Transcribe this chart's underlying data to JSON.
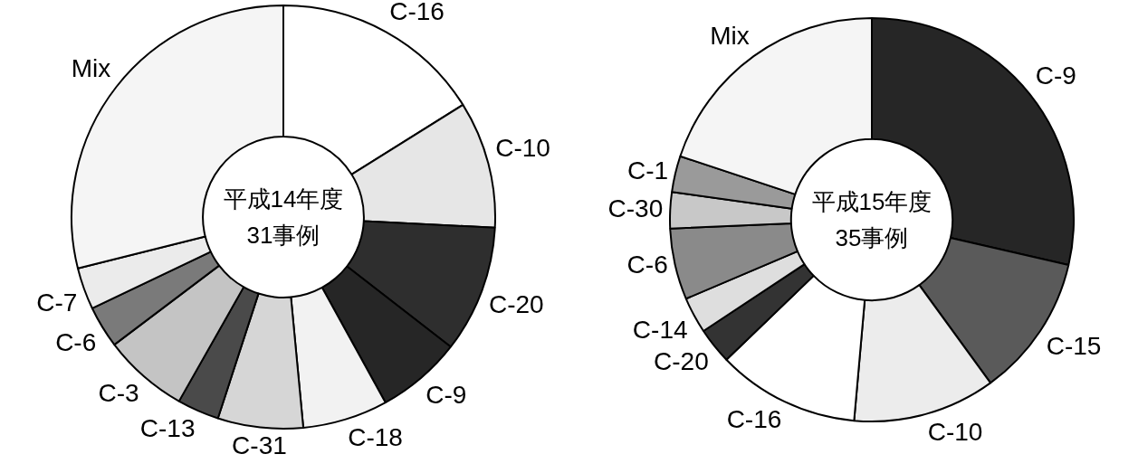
{
  "chart_data": [
    {
      "type": "donut",
      "title": "平成14年度",
      "subtitle": "31事例",
      "categories": [
        "C-16",
        "C-10",
        "C-20",
        "C-9",
        "C-18",
        "C-31",
        "C-13",
        "C-3",
        "C-6",
        "C-7",
        "Mix"
      ],
      "values": [
        16.1,
        9.7,
        9.7,
        6.5,
        6.5,
        6.5,
        3.2,
        6.5,
        3.2,
        3.2,
        28.9
      ],
      "colors": [
        "#ffffff",
        "#e6e6e6",
        "#2e2e2e",
        "#262626",
        "#f2f2f2",
        "#d6d6d6",
        "#4a4a4a",
        "#c4c4c4",
        "#7a7a7a",
        "#ebebeb",
        "#f5f5f5"
      ]
    },
    {
      "type": "donut",
      "title": "平成15年度",
      "subtitle": "35事例",
      "categories": [
        "C-9",
        "C-15",
        "C-10",
        "C-16",
        "C-20",
        "C-14",
        "C-6",
        "C-30",
        "C-1",
        "Mix"
      ],
      "values": [
        28.6,
        11.4,
        11.4,
        11.4,
        2.9,
        2.9,
        5.7,
        2.9,
        2.9,
        19.9
      ],
      "colors": [
        "#262626",
        "#5a5a5a",
        "#ececec",
        "#ffffff",
        "#333333",
        "#dedede",
        "#8a8a8a",
        "#c8c8c8",
        "#9a9a9a",
        "#f5f5f5"
      ]
    }
  ]
}
